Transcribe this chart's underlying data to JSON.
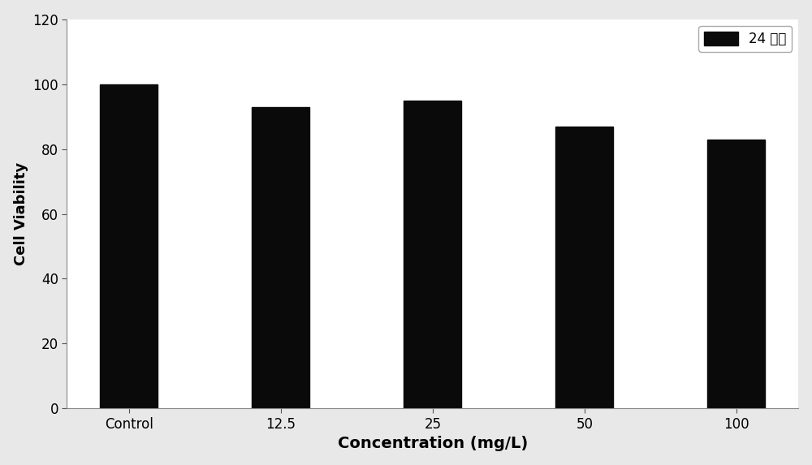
{
  "categories": [
    "Control",
    "12.5",
    "25",
    "50",
    "100"
  ],
  "values": [
    100,
    93,
    95,
    87,
    83
  ],
  "bar_color": "#0a0a0a",
  "xlabel": "Concentration (mg/L)",
  "ylabel": "Cell Viability",
  "ylim": [
    0,
    120
  ],
  "yticks": [
    0,
    20,
    40,
    60,
    80,
    100,
    120
  ],
  "legend_label": "24 小时",
  "legend_fontsize": 12,
  "xlabel_fontsize": 14,
  "ylabel_fontsize": 13,
  "tick_fontsize": 12,
  "bar_width": 0.38,
  "background_color": "#ffffff",
  "figure_bg": "#e8e8e8"
}
